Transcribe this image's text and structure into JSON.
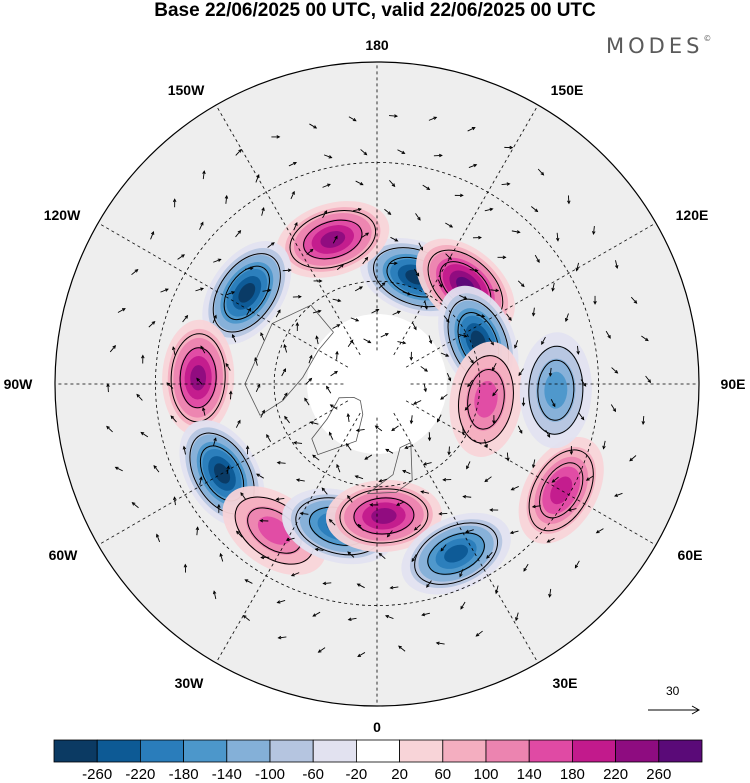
{
  "header": {
    "title": "Base 22/06/2025 00 UTC, valid 22/06/2025 00 UTC",
    "brand": "MODES",
    "brand_mark": "©"
  },
  "map": {
    "projection": "north-polar-stereographic",
    "longitude_labels": [
      "180",
      "150E",
      "120E",
      "90E",
      "60E",
      "30E",
      "0",
      "30W",
      "60W",
      "90W",
      "120W",
      "150W"
    ],
    "reference_vector_label": "30",
    "colors": {
      "negative_strong": "#0b3a6b",
      "neutral": "#ffffff",
      "positive_strong": "#4a0a6e",
      "land_shade": "#eeeeee"
    },
    "anomaly_features": [
      {
        "lon": 160,
        "lat": 57,
        "sign": "negative",
        "magnitude": 260
      },
      {
        "lon": 138,
        "lat": 52,
        "sign": "positive",
        "magnitude": 260
      },
      {
        "lon": 113,
        "lat": 58,
        "sign": "negative",
        "magnitude": 220
      },
      {
        "lon": -163,
        "lat": 47,
        "sign": "positive",
        "magnitude": 180
      },
      {
        "lon": -125,
        "lat": 45,
        "sign": "negative",
        "magnitude": 220
      },
      {
        "lon": -92,
        "lat": 40,
        "sign": "positive",
        "magnitude": 180
      },
      {
        "lon": -60,
        "lat": 40,
        "sign": "negative",
        "magnitude": 220
      },
      {
        "lon": -35,
        "lat": 40,
        "sign": "positive",
        "magnitude": 100
      },
      {
        "lon": -15,
        "lat": 48,
        "sign": "negative",
        "magnitude": 180
      },
      {
        "lon": 3,
        "lat": 52,
        "sign": "positive",
        "magnitude": 180
      },
      {
        "lon": 25,
        "lat": 38,
        "sign": "negative",
        "magnitude": 180
      },
      {
        "lon": 60,
        "lat": 32,
        "sign": "positive",
        "magnitude": 140
      },
      {
        "lon": 82,
        "lat": 58,
        "sign": "positive",
        "magnitude": 100
      },
      {
        "lon": 88,
        "lat": 40,
        "sign": "negative",
        "magnitude": 100
      }
    ]
  },
  "colorbar": {
    "labels": [
      "-260",
      "-220",
      "-180",
      "-140",
      "-100",
      "-60",
      "-20",
      "20",
      "60",
      "100",
      "140",
      "180",
      "220",
      "260"
    ],
    "colors": [
      "#0b3a63",
      "#0d5a95",
      "#2a7dbb",
      "#4c97cb",
      "#84b0d8",
      "#b5c5e0",
      "#e2e2f0",
      "#ffffff",
      "#f8d4d8",
      "#f4aec0",
      "#ec84b0",
      "#e04aa4",
      "#c21a8c",
      "#8e0c80",
      "#5a0a78"
    ]
  }
}
